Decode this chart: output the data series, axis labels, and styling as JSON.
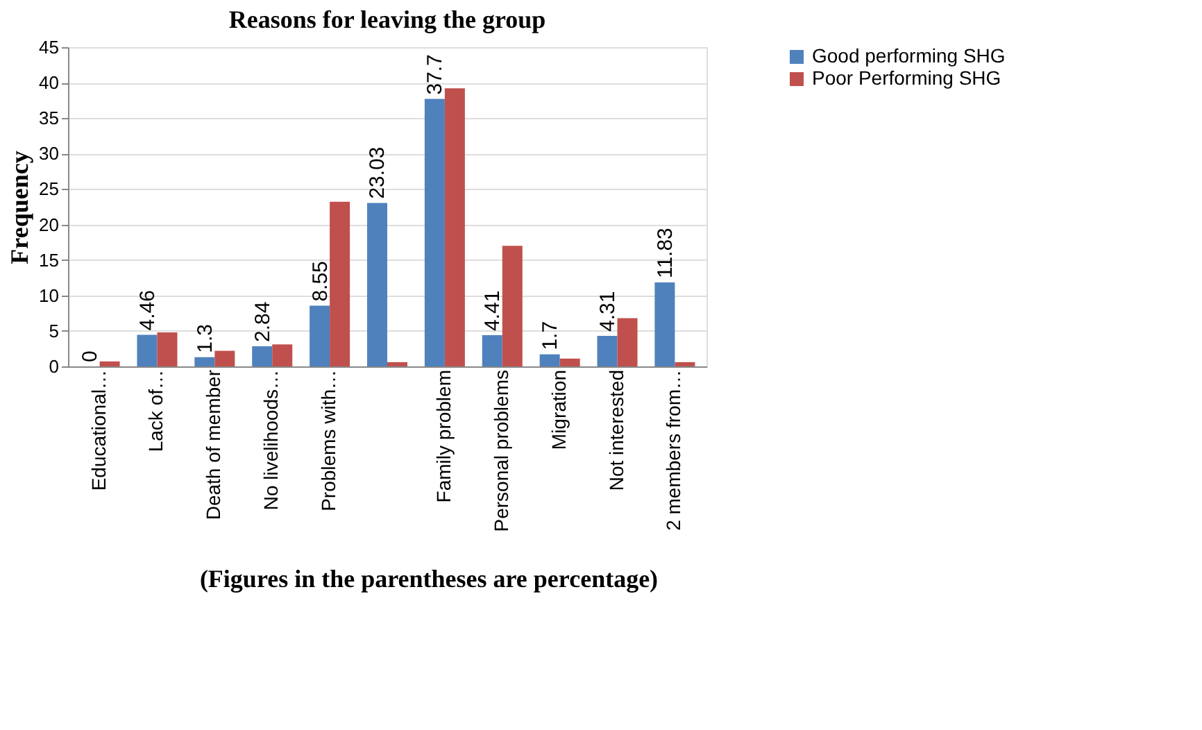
{
  "chart_data": {
    "type": "bar",
    "title": "Reasons for leaving the group",
    "ylabel": "Frequency",
    "categories": [
      "Educational…",
      "Lack of…",
      "Death of member",
      "No livelihoods…",
      "Problems with…",
      null,
      "Family problem",
      "Personal  problems",
      "Migration",
      "Not interested",
      "2 members from…"
    ],
    "series": [
      {
        "name": "Good performing SHG",
        "color": "#4f81bd",
        "values": [
          0,
          4.46,
          1.3,
          2.84,
          8.55,
          23.03,
          37.7,
          4.41,
          1.7,
          4.31,
          11.83
        ],
        "value_labels": [
          "0",
          "4.46",
          "1.3",
          "2.84",
          "8.55",
          "23.03",
          "37.7",
          "4.41",
          "1.7",
          "4.31",
          "11.83"
        ]
      },
      {
        "name": "Poor Performing SHG",
        "color": "#c0504d",
        "values": [
          0.7,
          4.8,
          2.2,
          3.1,
          23.2,
          0.6,
          39.2,
          17,
          1.1,
          6.8,
          0.6
        ]
      }
    ],
    "ylim": [
      0,
      45
    ],
    "yticks": [
      0,
      5,
      10,
      15,
      20,
      25,
      30,
      35,
      40,
      45
    ],
    "grid": "y",
    "legend": "right",
    "annotations": [
      "(Figures in the parentheses are percentage)"
    ]
  }
}
